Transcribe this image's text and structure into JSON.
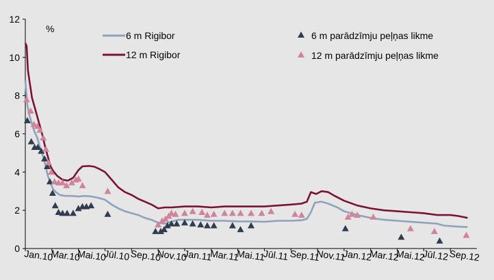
{
  "chart_data": {
    "type": "line",
    "unit_label": "%",
    "ylim": [
      0,
      12
    ],
    "y_ticks": [
      "0",
      "2",
      "4",
      "6",
      "8",
      "10",
      "12"
    ],
    "x_range": [
      0,
      34
    ],
    "x_ticks": [
      {
        "x": 0,
        "label": "Jan.10"
      },
      {
        "x": 2,
        "label": "Mar.10"
      },
      {
        "x": 4,
        "label": "Mai.10"
      },
      {
        "x": 6,
        "label": "Jūl.10"
      },
      {
        "x": 8,
        "label": "Sep.10"
      },
      {
        "x": 10,
        "label": "Nov.10"
      },
      {
        "x": 12,
        "label": "Jan.11"
      },
      {
        "x": 14,
        "label": "Mar.11"
      },
      {
        "x": 16,
        "label": "Mai.11"
      },
      {
        "x": 18,
        "label": "Jūl.11"
      },
      {
        "x": 20,
        "label": "Sep.11"
      },
      {
        "x": 22,
        "label": "Nov.11"
      },
      {
        "x": 24,
        "label": "Jan.12"
      },
      {
        "x": 26,
        "label": "Mar.12"
      },
      {
        "x": 28,
        "label": "Mai.12"
      },
      {
        "x": 30,
        "label": "Jūl.12"
      },
      {
        "x": 32,
        "label": "Sep.12"
      }
    ],
    "grid": false,
    "legend_position": "top",
    "series": [
      {
        "name": "6 m Rigibor",
        "kind": "line",
        "color": "#8ea2bd",
        "points": [
          [
            0.0,
            8.8
          ],
          [
            0.15,
            7.5
          ],
          [
            0.3,
            7.0
          ],
          [
            0.5,
            6.5
          ],
          [
            0.7,
            6.1
          ],
          [
            0.9,
            5.8
          ],
          [
            1.1,
            5.3
          ],
          [
            1.3,
            4.9
          ],
          [
            1.5,
            4.4
          ],
          [
            1.7,
            3.8
          ],
          [
            1.9,
            3.4
          ],
          [
            2.1,
            3.1
          ],
          [
            2.3,
            2.95
          ],
          [
            2.6,
            2.8
          ],
          [
            3.0,
            2.75
          ],
          [
            3.5,
            2.75
          ],
          [
            4.0,
            2.72
          ],
          [
            4.5,
            2.75
          ],
          [
            5.0,
            2.72
          ],
          [
            5.5,
            2.65
          ],
          [
            6.0,
            2.55
          ],
          [
            6.5,
            2.3
          ],
          [
            7.0,
            2.1
          ],
          [
            7.5,
            1.95
          ],
          [
            8.0,
            1.85
          ],
          [
            8.5,
            1.75
          ],
          [
            9.0,
            1.6
          ],
          [
            9.5,
            1.5
          ],
          [
            10.0,
            1.35
          ],
          [
            10.5,
            1.3
          ],
          [
            11.0,
            1.4
          ],
          [
            11.5,
            1.5
          ],
          [
            12.0,
            1.5
          ],
          [
            13.0,
            1.5
          ],
          [
            14.0,
            1.45
          ],
          [
            15.0,
            1.45
          ],
          [
            16.0,
            1.42
          ],
          [
            17.0,
            1.42
          ],
          [
            18.0,
            1.4
          ],
          [
            19.0,
            1.45
          ],
          [
            20.0,
            1.45
          ],
          [
            20.8,
            1.48
          ],
          [
            21.2,
            1.55
          ],
          [
            21.5,
            1.9
          ],
          [
            21.8,
            2.4
          ],
          [
            22.3,
            2.45
          ],
          [
            22.8,
            2.35
          ],
          [
            23.5,
            2.15
          ],
          [
            24.0,
            1.95
          ],
          [
            25.0,
            1.75
          ],
          [
            26.0,
            1.6
          ],
          [
            27.0,
            1.5
          ],
          [
            28.0,
            1.45
          ],
          [
            29.0,
            1.4
          ],
          [
            30.0,
            1.35
          ],
          [
            31.0,
            1.3
          ],
          [
            31.5,
            1.2
          ],
          [
            32.5,
            1.15
          ],
          [
            33.3,
            1.12
          ]
        ]
      },
      {
        "name": "12 m Rigibor",
        "kind": "line",
        "color": "#7b1133",
        "points": [
          [
            0.0,
            10.75
          ],
          [
            0.1,
            10.6
          ],
          [
            0.2,
            9.3
          ],
          [
            0.35,
            8.6
          ],
          [
            0.5,
            7.9
          ],
          [
            0.7,
            7.4
          ],
          [
            0.9,
            6.9
          ],
          [
            1.1,
            6.4
          ],
          [
            1.3,
            5.9
          ],
          [
            1.5,
            5.3
          ],
          [
            1.7,
            4.8
          ],
          [
            1.9,
            4.3
          ],
          [
            2.1,
            4.05
          ],
          [
            2.4,
            3.8
          ],
          [
            2.8,
            3.6
          ],
          [
            3.2,
            3.55
          ],
          [
            3.6,
            3.7
          ],
          [
            4.0,
            4.1
          ],
          [
            4.3,
            4.3
          ],
          [
            4.8,
            4.32
          ],
          [
            5.2,
            4.28
          ],
          [
            5.6,
            4.15
          ],
          [
            6.0,
            4.0
          ],
          [
            6.5,
            3.6
          ],
          [
            7.0,
            3.2
          ],
          [
            7.5,
            2.95
          ],
          [
            8.0,
            2.8
          ],
          [
            8.5,
            2.6
          ],
          [
            9.0,
            2.45
          ],
          [
            9.5,
            2.3
          ],
          [
            10.0,
            2.1
          ],
          [
            10.5,
            2.15
          ],
          [
            11.0,
            2.15
          ],
          [
            12.0,
            2.2
          ],
          [
            13.0,
            2.2
          ],
          [
            14.0,
            2.15
          ],
          [
            15.0,
            2.2
          ],
          [
            16.0,
            2.2
          ],
          [
            17.0,
            2.2
          ],
          [
            18.0,
            2.2
          ],
          [
            19.0,
            2.25
          ],
          [
            20.0,
            2.3
          ],
          [
            20.8,
            2.35
          ],
          [
            21.2,
            2.45
          ],
          [
            21.5,
            2.95
          ],
          [
            21.9,
            2.85
          ],
          [
            22.3,
            3.0
          ],
          [
            22.8,
            2.95
          ],
          [
            23.3,
            2.75
          ],
          [
            24.0,
            2.5
          ],
          [
            25.0,
            2.25
          ],
          [
            26.0,
            2.1
          ],
          [
            27.0,
            2.0
          ],
          [
            28.0,
            1.95
          ],
          [
            29.0,
            1.9
          ],
          [
            30.0,
            1.85
          ],
          [
            31.0,
            1.75
          ],
          [
            32.0,
            1.75
          ],
          [
            32.6,
            1.7
          ],
          [
            33.3,
            1.6
          ]
        ]
      },
      {
        "name": "6 m parādzīmju peļņas likme",
        "kind": "scatter",
        "marker": "triangle",
        "color": "#2f3d4f",
        "points": [
          [
            0.15,
            6.7
          ],
          [
            0.45,
            5.6
          ],
          [
            0.7,
            5.3
          ],
          [
            0.95,
            5.3
          ],
          [
            1.2,
            5.1
          ],
          [
            1.45,
            4.7
          ],
          [
            1.65,
            4.3
          ],
          [
            1.85,
            3.5
          ],
          [
            2.05,
            2.9
          ],
          [
            2.25,
            2.25
          ],
          [
            2.5,
            1.9
          ],
          [
            2.8,
            1.85
          ],
          [
            3.15,
            1.85
          ],
          [
            3.6,
            1.85
          ],
          [
            4.0,
            2.1
          ],
          [
            4.3,
            2.2
          ],
          [
            4.6,
            2.2
          ],
          [
            4.95,
            2.25
          ],
          [
            6.2,
            1.8
          ],
          [
            9.8,
            0.9
          ],
          [
            10.2,
            0.9
          ],
          [
            10.45,
            1.0
          ],
          [
            10.7,
            1.2
          ],
          [
            11.0,
            1.3
          ],
          [
            11.4,
            1.3
          ],
          [
            12.0,
            1.35
          ],
          [
            12.6,
            1.3
          ],
          [
            13.2,
            1.25
          ],
          [
            13.7,
            1.2
          ],
          [
            14.2,
            1.2
          ],
          [
            15.6,
            1.2
          ],
          [
            16.2,
            1.0
          ],
          [
            17.0,
            1.2
          ],
          [
            24.1,
            1.05
          ],
          [
            28.3,
            0.6
          ],
          [
            31.2,
            0.4
          ]
        ]
      },
      {
        "name": "12 m parādzīmju peļņas likme",
        "kind": "scatter",
        "marker": "triangle",
        "color": "#cf849c",
        "points": [
          [
            0.1,
            7.8
          ],
          [
            0.4,
            7.2
          ],
          [
            0.65,
            6.5
          ],
          [
            0.9,
            6.4
          ],
          [
            1.1,
            6.2
          ],
          [
            1.35,
            5.8
          ],
          [
            1.55,
            5.2
          ],
          [
            1.75,
            4.5
          ],
          [
            1.95,
            4.0
          ],
          [
            2.2,
            3.5
          ],
          [
            2.5,
            3.45
          ],
          [
            2.8,
            3.45
          ],
          [
            3.1,
            3.3
          ],
          [
            3.5,
            3.45
          ],
          [
            3.8,
            3.6
          ],
          [
            4.0,
            3.65
          ],
          [
            4.3,
            3.3
          ],
          [
            6.2,
            3.0
          ],
          [
            10.0,
            1.25
          ],
          [
            10.3,
            1.45
          ],
          [
            10.55,
            1.55
          ],
          [
            10.8,
            1.7
          ],
          [
            11.0,
            1.85
          ],
          [
            11.3,
            1.8
          ],
          [
            12.0,
            1.85
          ],
          [
            12.6,
            1.95
          ],
          [
            13.3,
            1.9
          ],
          [
            13.7,
            1.75
          ],
          [
            14.2,
            1.8
          ],
          [
            15.0,
            1.85
          ],
          [
            15.6,
            1.85
          ],
          [
            16.2,
            1.85
          ],
          [
            17.0,
            1.85
          ],
          [
            17.8,
            1.85
          ],
          [
            18.5,
            1.95
          ],
          [
            20.3,
            1.8
          ],
          [
            20.8,
            1.75
          ],
          [
            24.3,
            1.65
          ],
          [
            24.6,
            1.8
          ],
          [
            25.0,
            1.75
          ],
          [
            26.2,
            1.65
          ],
          [
            29.0,
            1.05
          ],
          [
            30.8,
            0.9
          ],
          [
            33.2,
            0.7
          ]
        ]
      }
    ]
  }
}
